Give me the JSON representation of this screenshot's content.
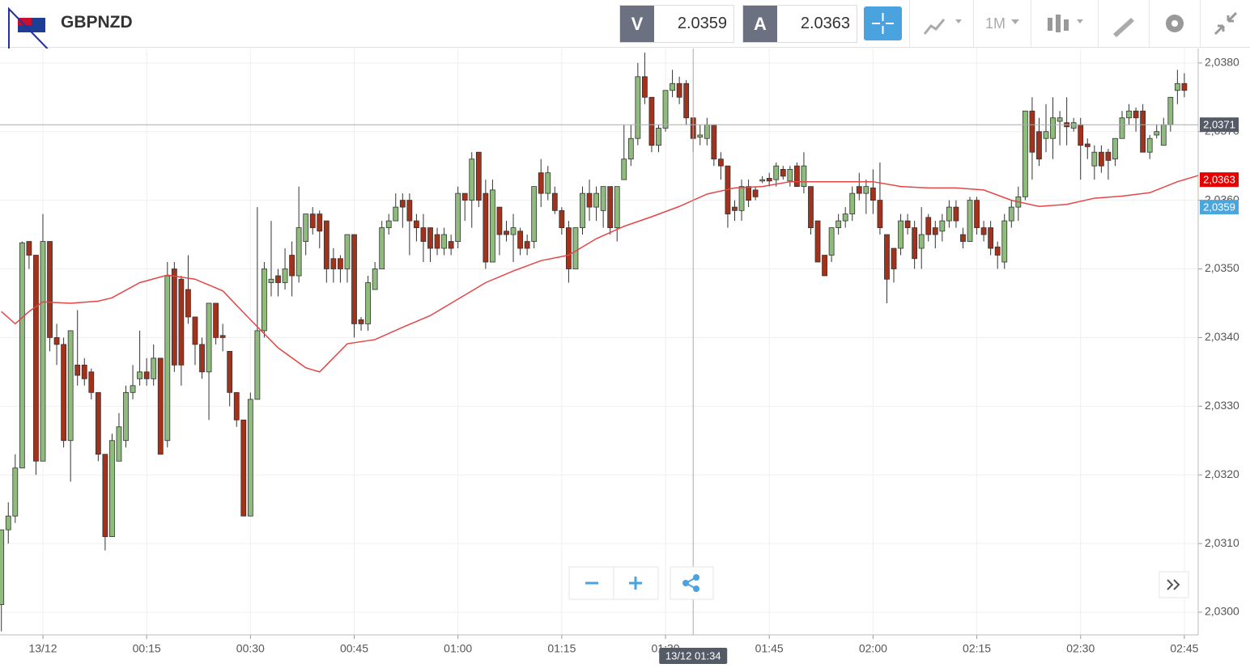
{
  "header": {
    "symbol": "GBPNZD",
    "bid_label": "V",
    "bid": "2.0359",
    "ask_label": "A",
    "ask": "2.0363",
    "timeframe": "1M"
  },
  "chart_data": {
    "type": "candlestick",
    "x": [
      -6,
      -5,
      -4,
      -3,
      -2,
      -1,
      0,
      1,
      2,
      3,
      4,
      5,
      6,
      7,
      8,
      9,
      10,
      11,
      12,
      13,
      14,
      15,
      16,
      17,
      18,
      19,
      20,
      21,
      22,
      23,
      24,
      25,
      26,
      27,
      28,
      29,
      30,
      31,
      32,
      33,
      34,
      35,
      36,
      37,
      38,
      39,
      40,
      41,
      42,
      43,
      44,
      45,
      46,
      47,
      48,
      49,
      50,
      51,
      52,
      53,
      54,
      55,
      56,
      57,
      58,
      59,
      60,
      61,
      62,
      63,
      64,
      65,
      66,
      67,
      68,
      69,
      70,
      71,
      72,
      73,
      74,
      75,
      76,
      77,
      78,
      79,
      80,
      81,
      82,
      83,
      84,
      85,
      86,
      87,
      88,
      89,
      90,
      91,
      92,
      93,
      94,
      95,
      96,
      97,
      98,
      99,
      100,
      101,
      102,
      103,
      104,
      105,
      106,
      107,
      108,
      109,
      110,
      111,
      112,
      113,
      114,
      115,
      116,
      117,
      118,
      119,
      120,
      121,
      122,
      123,
      124,
      125,
      126,
      127,
      128,
      129,
      130,
      131,
      132,
      133,
      134,
      135,
      136,
      137,
      138,
      139,
      140,
      141,
      142,
      143,
      144,
      145,
      146,
      147,
      148,
      149,
      150,
      151,
      152,
      153,
      154,
      155,
      156,
      157,
      158,
      159,
      160,
      161,
      162,
      163,
      164,
      165
    ],
    "open": [
      2.03011,
      2.0312,
      2.0314,
      2.0321,
      2.0354,
      2.0352,
      2.0322,
      2.0354,
      2.034,
      2.0339,
      2.0325,
      2.0336,
      2.0336,
      2.0335,
      2.0332,
      2.0323,
      2.0311,
      2.0322,
      2.0325,
      2.0332,
      2.0334,
      2.0335,
      2.0334,
      2.0337,
      2.0325,
      2.035,
      2.03485,
      2.0347,
      2.0343,
      2.0339,
      2.0335,
      2.0345,
      2.03403,
      2.0338,
      2.0332,
      2.0328,
      2.0314,
      2.0331,
      2.0341,
      2.0348,
      2.0349,
      2.0348,
      2.0352,
      2.0349,
      2.0354,
      2.0358,
      2.0358,
      2.0357,
      2.03515,
      2.03515,
      2.035,
      2.0355,
      2.03426,
      2.0342,
      2.0347,
      2.035,
      2.0356,
      2.0357,
      2.036,
      2.036,
      2.0357,
      2.0356,
      2.0356,
      2.0355,
      2.0353,
      2.0354,
      2.0354,
      2.0361,
      2.036,
      2.0367,
      2.0361,
      2.0351,
      2.0359,
      2.03555,
      2.0355,
      2.03555,
      2.0354,
      2.0354,
      2.0364,
      2.0361,
      2.0361,
      2.03585,
      2.0356,
      2.035,
      2.0356,
      2.0361,
      2.0359,
      2.03585,
      2.0362,
      2.0356,
      2.0363,
      2.0366,
      2.0369,
      2.0378,
      2.0375,
      2.0368,
      2.03705,
      2.0376,
      2.0377,
      2.0377,
      2.0372,
      2.03692,
      2.0369,
      2.0371,
      2.0366,
      2.0365,
      2.0359,
      2.03585,
      2.0362,
      2.03615,
      2.03628,
      2.03632,
      2.0363,
      2.03645,
      2.03628,
      2.0365,
      2.0362,
      2.0362,
      2.0357,
      2.0352,
      2.0352,
      2.0356,
      2.0357,
      2.0358,
      2.0362,
      2.0361,
      2.03618,
      2.036,
      2.0355,
      2.0353,
      2.0353,
      2.0357,
      2.0356,
      2.0353,
      2.03575,
      2.0356,
      2.03555,
      2.0357,
      2.0359,
      2.0355,
      2.0354,
      2.036,
      2.0356,
      2.0356,
      2.03532,
      2.0351,
      2.0357,
      2.0359,
      2.03605,
      2.0373,
      2.037,
      2.0369,
      2.0369,
      2.03715,
      2.03713,
      2.03705,
      2.0371,
      2.03682,
      2.0365,
      2.0367,
      2.0367,
      2.0366,
      2.0369,
      2.0372,
      2.0373,
      2.0373,
      2.0367,
      2.03695,
      2.0368,
      2.0371,
      2.0376,
      2.0377
    ],
    "high": [
      2.0312,
      2.0316,
      2.0323,
      2.0354,
      2.0354,
      2.0352,
      2.0358,
      2.0354,
      2.0342,
      2.034,
      2.0341,
      2.0344,
      2.0337,
      2.03355,
      2.0332,
      2.0323,
      2.0326,
      2.0329,
      2.0333,
      2.0336,
      2.0341,
      2.0337,
      2.0339,
      2.0337,
      2.0351,
      2.0351,
      2.0349,
      2.0352,
      2.0343,
      2.034,
      2.0345,
      2.0345,
      2.0342,
      2.0338,
      2.0332,
      2.0328,
      2.0332,
      2.0359,
      2.0351,
      2.0357,
      2.035,
      2.0353,
      2.0354,
      2.0362,
      2.0358,
      2.0359,
      2.03585,
      2.0357,
      2.0353,
      2.0352,
      2.0355,
      2.0355,
      2.0343,
      2.0349,
      2.0351,
      2.0357,
      2.0358,
      2.0361,
      2.0361,
      2.0361,
      2.0358,
      2.0358,
      2.0356,
      2.0356,
      2.0356,
      2.0355,
      2.0362,
      2.0361,
      2.0367,
      2.0367,
      2.0363,
      2.0363,
      2.0359,
      2.0357,
      2.0358,
      2.0356,
      2.0355,
      2.0362,
      2.0366,
      2.0365,
      2.0362,
      2.0359,
      2.0357,
      2.0356,
      2.0362,
      2.0363,
      2.0362,
      2.0362,
      2.0362,
      2.0362,
      2.0371,
      2.0371,
      2.038,
      2.03815,
      2.0375,
      2.0371,
      2.0376,
      2.0379,
      2.0378,
      2.03775,
      2.0372,
      2.0371,
      2.0372,
      2.0371,
      2.0367,
      2.0365,
      2.036,
      2.0363,
      2.0363,
      2.0362,
      2.03635,
      2.0364,
      2.03655,
      2.0365,
      2.0365,
      2.03655,
      2.0367,
      2.0362,
      2.0357,
      2.0352,
      2.0356,
      2.0358,
      2.0359,
      2.0362,
      2.0364,
      2.0363,
      2.03645,
      2.03655,
      2.0355,
      2.0353,
      2.0358,
      2.0358,
      2.0357,
      2.0359,
      2.0358,
      2.0357,
      2.0358,
      2.036,
      2.036,
      2.0356,
      2.03605,
      2.03605,
      2.0357,
      2.0357,
      2.0354,
      2.0358,
      2.036,
      2.0362,
      2.0373,
      2.0375,
      2.0372,
      2.0374,
      2.0375,
      2.0373,
      2.0375,
      2.0372,
      2.0372,
      2.0369,
      2.0368,
      2.0368,
      2.03675,
      2.0369,
      2.0373,
      2.0374,
      2.03735,
      2.0374,
      2.03695,
      2.0371,
      2.0372,
      2.0375,
      2.0379,
      2.03785
    ],
    "low": [
      2.02972,
      2.031,
      2.0313,
      2.0321,
      2.035,
      2.032,
      2.0322,
      2.0338,
      2.0336,
      2.0324,
      2.0319,
      2.0333,
      2.0333,
      2.0331,
      2.0322,
      2.0309,
      2.0311,
      2.0322,
      2.0324,
      2.0331,
      2.0333,
      2.0333,
      2.0333,
      2.0323,
      2.0324,
      2.0335,
      2.0333,
      2.0342,
      2.0336,
      2.0334,
      2.0328,
      2.0339,
      2.0338,
      2.033,
      2.0327,
      2.0314,
      2.0314,
      2.0331,
      2.034,
      2.0346,
      2.0346,
      2.0347,
      2.0346,
      2.0348,
      2.0352,
      2.0355,
      2.0353,
      2.0348,
      2.0348,
      2.0348,
      2.0348,
      2.034,
      2.0341,
      2.0341,
      2.0347,
      2.035,
      2.0355,
      2.0357,
      2.0356,
      2.0352,
      2.0354,
      2.0351,
      2.0351,
      2.0352,
      2.0352,
      2.0352,
      2.0353,
      2.0357,
      2.0356,
      2.0359,
      2.035,
      2.0351,
      2.0352,
      2.0354,
      2.0351,
      2.0352,
      2.0352,
      2.0353,
      2.0359,
      2.036,
      2.0358,
      2.0355,
      2.0348,
      2.035,
      2.0355,
      2.0357,
      2.0357,
      2.0356,
      2.0355,
      2.0354,
      2.0363,
      2.0365,
      2.0368,
      2.0374,
      2.0367,
      2.0367,
      2.037,
      2.0375,
      2.0374,
      2.0371,
      2.0367,
      2.0368,
      2.0368,
      2.0365,
      2.0363,
      2.0356,
      2.0357,
      2.0357,
      2.0359,
      2.036,
      2.03625,
      2.0362,
      2.0362,
      2.0363,
      2.0362,
      2.0362,
      2.0361,
      2.0355,
      2.0351,
      2.0349,
      2.0351,
      2.0355,
      2.0356,
      2.0357,
      2.036,
      2.0358,
      2.0358,
      2.0355,
      2.0345,
      2.0348,
      2.0352,
      2.0355,
      2.035,
      2.035,
      2.0354,
      2.0353,
      2.0354,
      2.0356,
      2.0356,
      2.0353,
      2.0354,
      2.0355,
      2.0354,
      2.0352,
      2.035,
      2.035,
      2.0356,
      2.0357,
      2.036,
      2.0363,
      2.0365,
      2.0367,
      2.0366,
      2.0368,
      2.0368,
      2.037,
      2.0363,
      2.0366,
      2.0363,
      2.0364,
      2.0363,
      2.0365,
      2.0369,
      2.0371,
      2.037,
      2.0367,
      2.0366,
      2.0369,
      2.0368,
      2.037,
      2.0374,
      2.0375
    ],
    "close": [
      2.0312,
      2.0314,
      2.0321,
      2.03538,
      2.0352,
      2.0322,
      2.0354,
      2.034,
      2.0339,
      2.0325,
      2.0341,
      2.03345,
      2.0334,
      2.0332,
      2.0323,
      2.0311,
      2.0325,
      2.0327,
      2.0332,
      2.0333,
      2.0335,
      2.0334,
      2.0337,
      2.0323,
      2.0349,
      2.0336,
      2.0336,
      2.0343,
      2.0339,
      2.0335,
      2.0345,
      2.034,
      2.034,
      2.0332,
      2.0328,
      2.0314,
      2.0331,
      2.0341,
      2.035,
      2.03485,
      2.0348,
      2.035,
      2.0349,
      2.0356,
      2.0358,
      2.0356,
      2.03555,
      2.035,
      2.035,
      2.035,
      2.0355,
      2.0342,
      2.0342,
      2.0348,
      2.035,
      2.0356,
      2.0357,
      2.0359,
      2.0359,
      2.0357,
      2.0356,
      2.0354,
      2.0353,
      2.0353,
      2.0355,
      2.0353,
      2.0361,
      2.036,
      2.0366,
      2.036,
      2.0351,
      2.03615,
      2.0355,
      2.0355,
      2.0356,
      2.0353,
      2.0353,
      2.0362,
      2.0361,
      2.0364,
      2.03585,
      2.0356,
      2.035,
      2.0356,
      2.0361,
      2.0359,
      2.0361,
      2.0362,
      2.0356,
      2.0362,
      2.0366,
      2.0369,
      2.0378,
      2.0375,
      2.0368,
      2.03705,
      2.0376,
      2.0377,
      2.0375,
      2.0372,
      2.0369,
      2.03695,
      2.0371,
      2.0366,
      2.0365,
      2.0358,
      2.03585,
      2.0362,
      2.036,
      2.03605,
      2.0363,
      2.03628,
      2.0365,
      2.03635,
      2.03645,
      2.0362,
      2.0365,
      2.0356,
      2.0351,
      2.0349,
      2.0356,
      2.0357,
      2.0358,
      2.0361,
      2.0361,
      2.0362,
      2.036,
      2.0356,
      2.03485,
      2.035,
      2.0357,
      2.0356,
      2.03515,
      2.0355,
      2.0355,
      2.0355,
      2.0357,
      2.0359,
      2.0357,
      2.0354,
      2.036,
      2.0356,
      2.0355,
      2.0353,
      2.0352,
      2.0357,
      2.0359,
      2.03605,
      2.0373,
      2.0367,
      2.0366,
      2.037,
      2.0372,
      2.0372,
      2.03707,
      2.03713,
      2.0368,
      2.03678,
      2.0367,
      2.0365,
      2.03658,
      2.0369,
      2.0372,
      2.0373,
      2.0372,
      2.0367,
      2.0369,
      2.037,
      2.0371,
      2.0375,
      2.0377,
      2.0376
    ],
    "up_color": "#8fbb7c",
    "down_color": "#a2321b",
    "ma": {
      "color": "#e34646",
      "x": [
        -6,
        -4,
        -2,
        0,
        4,
        8,
        10,
        14,
        18,
        22,
        26,
        30,
        34,
        38,
        40,
        44,
        48,
        52,
        56,
        60,
        64,
        68,
        72,
        76,
        80,
        84,
        88,
        92,
        96,
        100,
        104,
        108,
        112,
        116,
        120,
        124,
        128,
        132,
        136,
        140,
        144,
        148,
        152,
        156,
        160,
        164,
        167
      ],
      "values": [
        2.03438,
        2.0342,
        2.03438,
        2.03452,
        2.0345,
        2.03453,
        2.03458,
        2.0348,
        2.03491,
        2.03485,
        2.03468,
        2.03426,
        2.03385,
        2.03356,
        2.0335,
        2.03391,
        2.03397,
        2.03415,
        2.03432,
        2.03456,
        2.0348,
        2.03497,
        2.03512,
        2.0352,
        2.03544,
        2.03562,
        2.03576,
        2.03591,
        2.03609,
        2.03618,
        2.0362,
        2.03627,
        2.03627,
        2.03627,
        2.03627,
        2.0362,
        2.03618,
        2.03618,
        2.03615,
        2.036,
        2.03591,
        2.03594,
        2.03603,
        2.03606,
        2.03611,
        2.03627,
        2.03636
      ]
    },
    "xlim": [
      -6.2,
      167
    ],
    "ylim": [
      2.02967,
      2.03821
    ],
    "xticks": [
      {
        "value": 0,
        "label": "13/12"
      },
      {
        "value": 15,
        "label": "00:15"
      },
      {
        "value": 30,
        "label": "00:30"
      },
      {
        "value": 45,
        "label": "00:45"
      },
      {
        "value": 60,
        "label": "01:00"
      },
      {
        "value": 75,
        "label": "01:15"
      },
      {
        "value": 90,
        "label": "01:30"
      },
      {
        "value": 105,
        "label": "01:45"
      },
      {
        "value": 120,
        "label": "02:00"
      },
      {
        "value": 135,
        "label": "02:15"
      },
      {
        "value": 150,
        "label": "02:30"
      },
      {
        "value": 165,
        "label": "02:45"
      }
    ],
    "yticks": [
      {
        "value": 2.03,
        "label": "2,0300"
      },
      {
        "value": 2.031,
        "label": "2,0310"
      },
      {
        "value": 2.032,
        "label": "2,0320"
      },
      {
        "value": 2.033,
        "label": "2,0330"
      },
      {
        "value": 2.034,
        "label": "2,0340"
      },
      {
        "value": 2.035,
        "label": "2,0350"
      },
      {
        "value": 2.036,
        "label": "2,0360"
      },
      {
        "value": 2.037,
        "label": "2,0370"
      },
      {
        "value": 2.038,
        "label": "2,0380"
      }
    ],
    "grid": true,
    "price_labels": [
      {
        "value": 2.0363,
        "label": "2,0363",
        "color": "#e60000"
      },
      {
        "value": 2.0359,
        "label": "2,0359",
        "color": "#4ba6de"
      }
    ],
    "crosshair": {
      "x": 94,
      "y": 2.0371,
      "x_label": "13/12 01:34",
      "y_label": "2,0371",
      "color": "#545b66"
    }
  }
}
